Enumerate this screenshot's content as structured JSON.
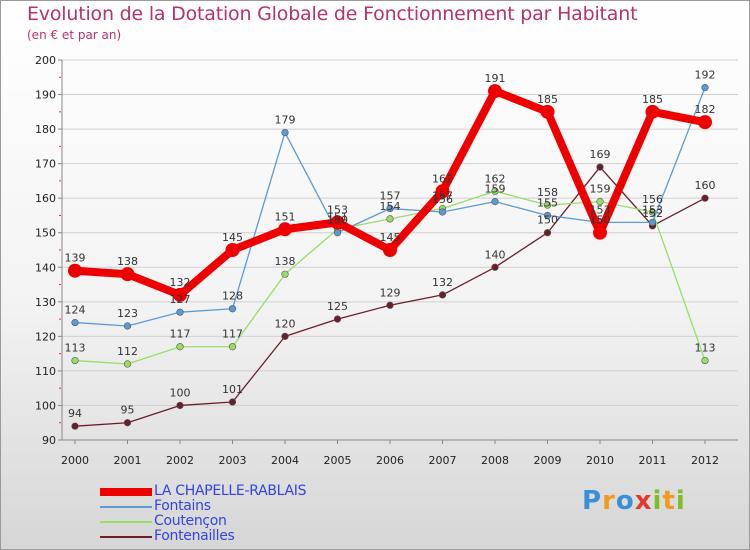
{
  "chart_data": {
    "type": "line",
    "title": "Evolution de la Dotation Globale de Fonctionnement par Habitant",
    "subtitle": "(en € et par an)",
    "xlabel": "",
    "ylabel": "",
    "categories": [
      "2000",
      "2001",
      "2002",
      "2003",
      "2004",
      "2005",
      "2006",
      "2007",
      "2008",
      "2009",
      "2010",
      "2011",
      "2012"
    ],
    "ylim": [
      90,
      200
    ],
    "yticks": [
      "90",
      "100",
      "110",
      "120",
      "130",
      "140",
      "150",
      "160",
      "170",
      "180",
      "190",
      "200"
    ],
    "legend_position": "bottom-left",
    "series": [
      {
        "name": "LA CHAPELLE-RABLAIS",
        "color": "#ee0000",
        "values": [
          139,
          138,
          132,
          145,
          151,
          153,
          145,
          162,
          191,
          185,
          150,
          185,
          182
        ],
        "labels": [
          "139",
          "138",
          "132",
          "145",
          "151",
          "153",
          "145",
          "162",
          "191",
          "185",
          "150",
          "185",
          "182"
        ]
      },
      {
        "name": "Fontains",
        "color": "#5b9bd5",
        "values": [
          124,
          123,
          127,
          128,
          179,
          150,
          157,
          156,
          159,
          155,
          153,
          153,
          192
        ],
        "labels": [
          "124",
          "123",
          "127",
          "128",
          "179",
          "150",
          "157",
          "156",
          "159",
          "155",
          "153",
          "153",
          "192"
        ]
      },
      {
        "name": "Coutençon",
        "color": "#99dd66",
        "values": [
          113,
          112,
          117,
          117,
          138,
          151,
          154,
          157,
          162,
          158,
          159,
          156,
          113
        ],
        "labels": [
          "113",
          "112",
          "117",
          "117",
          "138",
          "151",
          "154",
          "157",
          "162",
          "158",
          "159",
          "156",
          "113"
        ]
      },
      {
        "name": "Fontenailles",
        "color": "#6b1e2a",
        "values": [
          94,
          95,
          100,
          101,
          120,
          125,
          129,
          132,
          140,
          150,
          169,
          152,
          160
        ],
        "labels": [
          "94",
          "95",
          "100",
          "101",
          "120",
          "125",
          "129",
          "132",
          "140",
          "150",
          "169",
          "152",
          "160"
        ]
      }
    ]
  },
  "logo": {
    "letters": [
      {
        "ch": "P",
        "color": "#3a8fd8"
      },
      {
        "ch": "r",
        "color": "#f29a1e"
      },
      {
        "ch": "o",
        "color": "#3a8fd8"
      },
      {
        "ch": "x",
        "color": "#e23b2e"
      },
      {
        "ch": "i",
        "color": "#7bbf2a"
      },
      {
        "ch": "t",
        "color": "#f29a1e"
      },
      {
        "ch": "i",
        "color": "#7bbf2a"
      }
    ]
  }
}
